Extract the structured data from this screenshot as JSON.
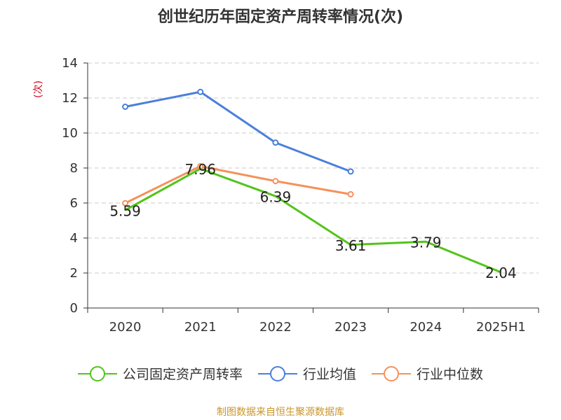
{
  "title": "创世纪历年固定资产周转率情况(次)",
  "unit_label": "(次)",
  "source": "制图数据来自恒生聚源数据库",
  "colors": {
    "unit": "#d0021b",
    "grid": "#cccccc",
    "axis": "#333333"
  },
  "chart_data": {
    "type": "line",
    "categories": [
      "2020",
      "2021",
      "2022",
      "2023",
      "2024",
      "2025H1"
    ],
    "ylim": [
      0,
      14
    ],
    "yticks": [
      0,
      2,
      4,
      6,
      8,
      10,
      12,
      14
    ],
    "grid": true,
    "legend_position": "bottom",
    "series": [
      {
        "name": "公司固定资产周转率",
        "color": "#52c41a",
        "values": [
          5.59,
          7.96,
          6.39,
          3.61,
          3.79,
          2.04
        ],
        "labels": [
          "5.59",
          "7.96",
          "6.39",
          "3.61",
          "3.79",
          "2.04"
        ],
        "markers": false
      },
      {
        "name": "行业均值",
        "color": "#4a7fdc",
        "values": [
          11.5,
          12.35,
          9.45,
          7.8,
          null,
          null
        ],
        "markers": true
      },
      {
        "name": "行业中位数",
        "color": "#f5915a",
        "values": [
          5.99,
          8.1,
          7.25,
          6.5,
          null,
          null
        ],
        "markers": true
      }
    ]
  }
}
